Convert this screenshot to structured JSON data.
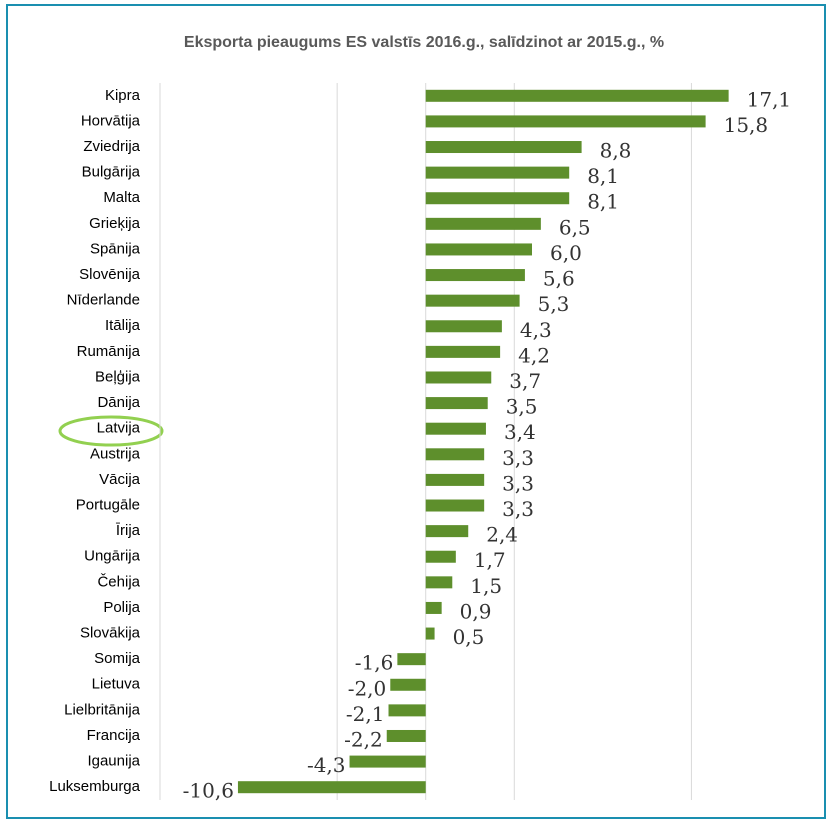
{
  "chart_data": {
    "type": "barh",
    "title": "Eksporta pieaugums ES valstīs 2016.g., salīdzinot ar 2015.g., %",
    "categories": [
      "Kipra",
      "Horvātija",
      "Zviedrija",
      "Bulgārija",
      "Malta",
      "Grieķija",
      "Spānija",
      "Slovēnija",
      "Nīderlande",
      "Itālija",
      "Rumānija",
      "Beļģija",
      "Dānija",
      "Latvija",
      "Austrija",
      "Vācija",
      "Portugāle",
      "Īrija",
      "Ungārija",
      "Čehija",
      "Polija",
      "Slovākija",
      "Somija",
      "Lietuva",
      "Lielbritānija",
      "Francija",
      "Igaunija",
      "Luksemburga"
    ],
    "values": [
      17.1,
      15.8,
      8.8,
      8.1,
      8.1,
      6.5,
      6.0,
      5.6,
      5.3,
      4.3,
      4.2,
      3.7,
      3.5,
      3.4,
      3.3,
      3.3,
      3.3,
      2.4,
      1.7,
      1.5,
      0.9,
      0.5,
      -1.6,
      -2.0,
      -2.1,
      -2.2,
      -4.3,
      -10.6
    ],
    "value_labels": [
      "17,1",
      "15,8",
      "8,8",
      "8,1",
      "8,1",
      "6,5",
      "6,0",
      "5,6",
      "5,3",
      "4,3",
      "4,2",
      "3,7",
      "3,5",
      "3,4",
      "3,3",
      "3,3",
      "3,3",
      "2,4",
      "1,7",
      "1,5",
      "0,9",
      "0,5",
      "-1,6",
      "-2,0",
      "-2,1",
      "-2,2",
      "-4,3",
      "-10,6"
    ],
    "color": "#5e8f2c",
    "xlim": [
      -15,
      20
    ],
    "xticks": [
      -15,
      -5,
      5,
      15
    ],
    "grid": true
  }
}
